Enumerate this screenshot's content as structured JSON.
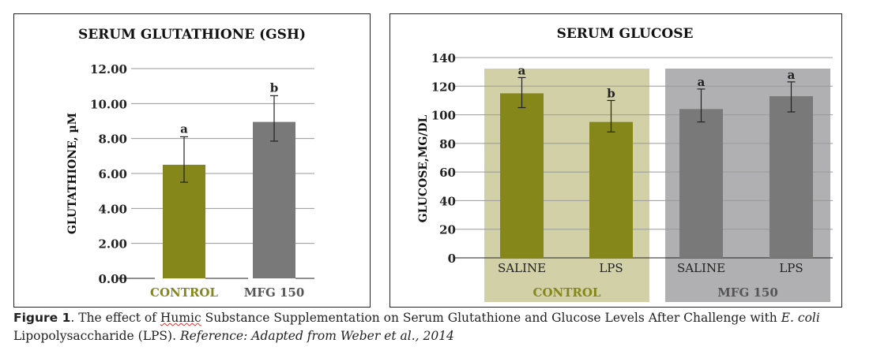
{
  "chart_data": [
    {
      "type": "bar",
      "title": "SERUM GLUTATHIONE (GSH)",
      "ylabel": "GLUTATHIONE, µM",
      "xlabel": "",
      "ylim": [
        0,
        12
      ],
      "ytick_labels": [
        "0.00",
        "2.00",
        "4.00",
        "6.00",
        "8.00",
        "10.00",
        "12.00"
      ],
      "categories": [
        "CONTROL",
        "MFG 150"
      ],
      "values": [
        6.5,
        8.95
      ],
      "error_low": [
        5.5,
        7.85
      ],
      "error_high": [
        8.1,
        10.45
      ],
      "significance": [
        "a",
        "b"
      ],
      "bar_colors": [
        "#85871a",
        "#797979"
      ],
      "category_label_colors": [
        "#85871a",
        "#555555"
      ],
      "grid": true
    },
    {
      "type": "bar",
      "title": "SERUM GLUCOSE",
      "ylabel": "GLUCOSE,MG/DL",
      "xlabel": "",
      "ylim": [
        0,
        140
      ],
      "ytick_labels": [
        "0",
        "20",
        "40",
        "60",
        "80",
        "100",
        "120",
        "140"
      ],
      "categories": [
        "SALINE",
        "LPS",
        "SALINE",
        "LPS"
      ],
      "groups": [
        {
          "label": "CONTROL",
          "background": "#d1d0a6",
          "label_color": "#85871a"
        },
        {
          "label": "MFG 150",
          "background": "#b0afb1",
          "label_color": "#555555"
        }
      ],
      "values": [
        115,
        95,
        104,
        113
      ],
      "error_low": [
        105,
        88,
        95,
        102
      ],
      "error_high": [
        126,
        110,
        118,
        123
      ],
      "significance": [
        "a",
        "b",
        "a",
        "a"
      ],
      "bar_colors": [
        "#85871a",
        "#85871a",
        "#797979",
        "#797979"
      ],
      "grid": true
    }
  ],
  "caption": {
    "figure_label": "Figure 1",
    "part1": ". The effect of ",
    "squiggle_word": "Humic",
    "part2": " Substance Supplementation on Serum Glutathione and Glucose Levels After Challenge with ",
    "italic_species": "E. coli",
    "line2": "Lipopolysaccharide (LPS).  ",
    "reference": "Reference: Adapted from Weber et al., 2014"
  }
}
